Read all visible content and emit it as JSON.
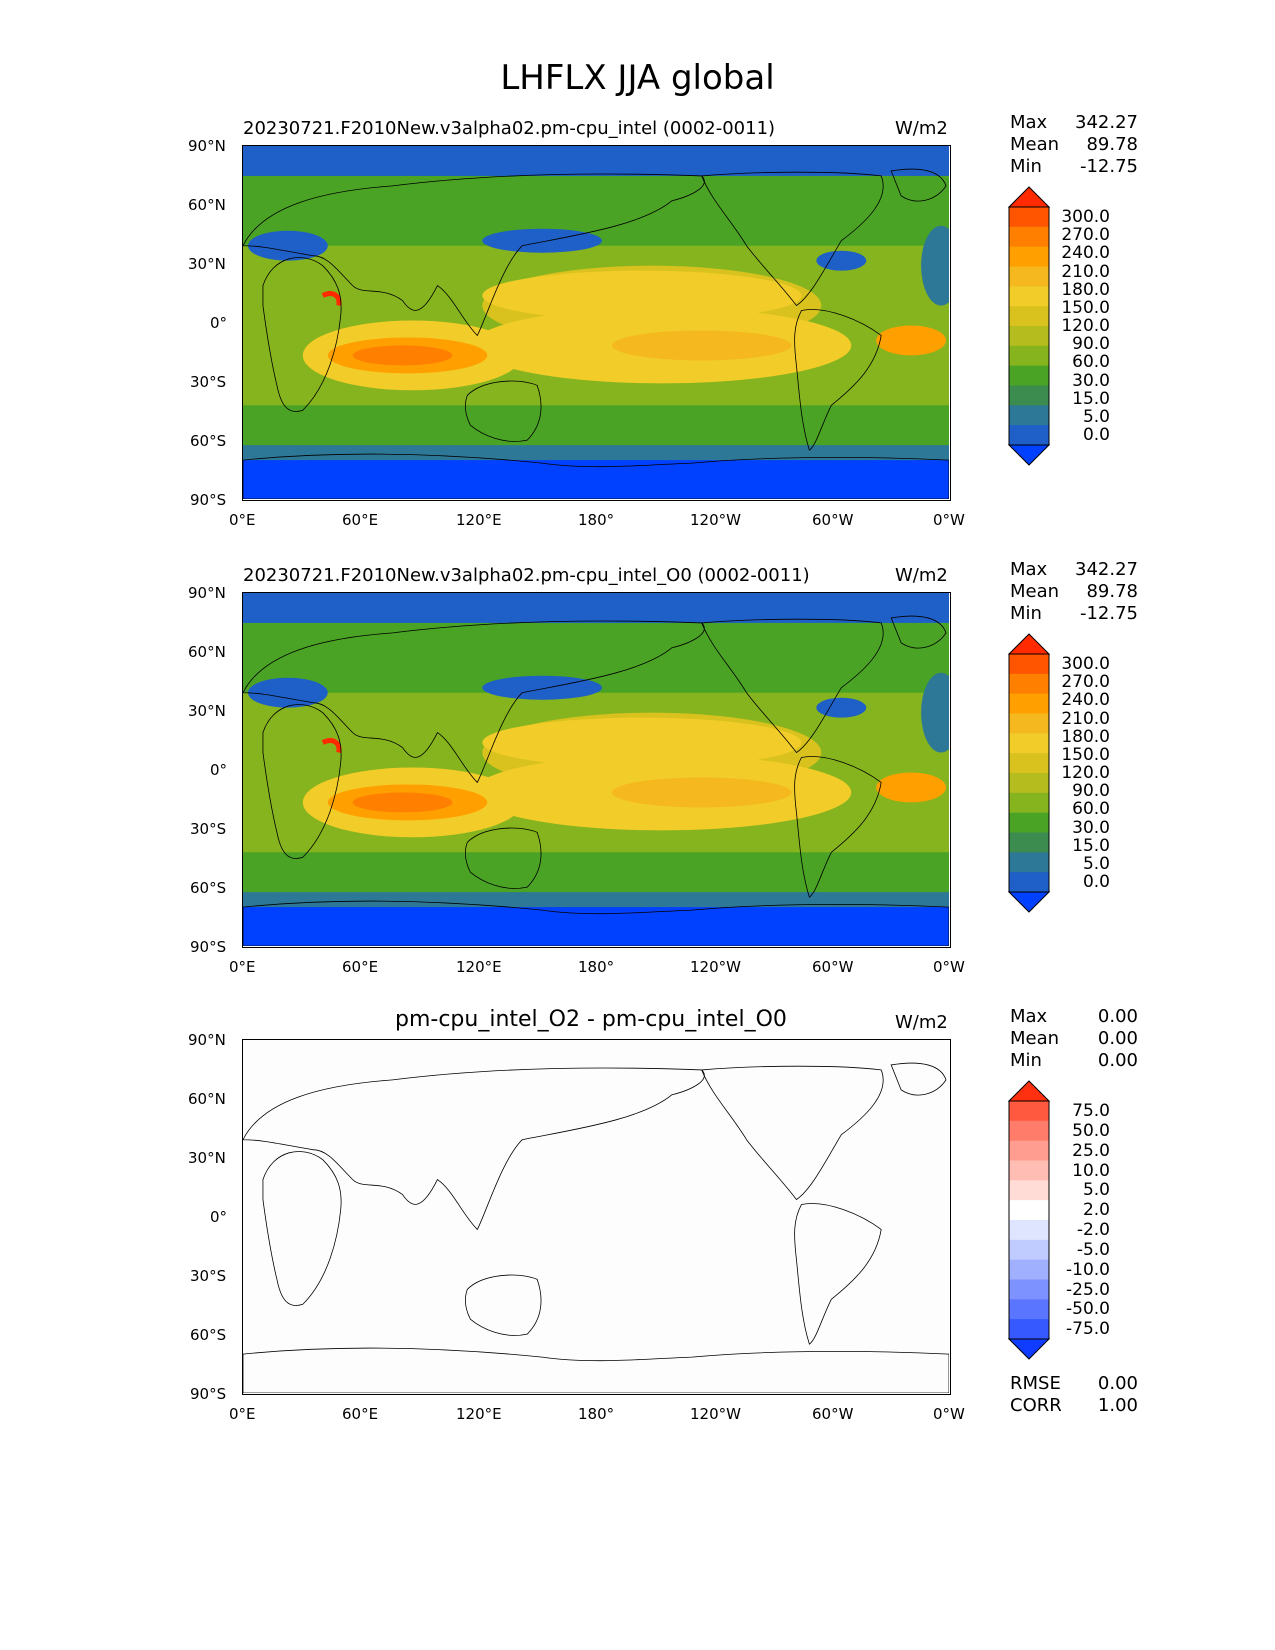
{
  "title": "LHFLX JJA global",
  "lat_ticks": [
    "90°N",
    "60°N",
    "30°N",
    "0°",
    "30°S",
    "60°S",
    "90°S"
  ],
  "lon_ticks": [
    "0°E",
    "60°E",
    "120°E",
    "180°",
    "120°W",
    "60°W",
    "0°W"
  ],
  "panels": [
    {
      "title": "20230721.F2010New.v3alpha02.pm-cpu_intel (0002-0011)",
      "units": "W/m2",
      "stats": {
        "max_label": "Max",
        "max": "342.27",
        "mean_label": "Mean",
        "mean": "89.78",
        "min_label": "Min",
        "min": "-12.75"
      },
      "colorbar": {
        "labels": [
          "300.0",
          "270.0",
          "240.0",
          "210.0",
          "180.0",
          "150.0",
          "120.0",
          "90.0",
          "60.0",
          "30.0",
          "15.0",
          "5.0",
          "0.0"
        ],
        "colors": [
          "#ff2a00",
          "#ff5500",
          "#ff7f00",
          "#ffa000",
          "#f5b81e",
          "#f2cc28",
          "#d9c21e",
          "#b5bc1e",
          "#86b41e",
          "#4aa324",
          "#3c8c50",
          "#2d7896",
          "#1e5fc8",
          "#0040ff"
        ]
      }
    },
    {
      "title": "20230721.F2010New.v3alpha02.pm-cpu_intel_O0 (0002-0011)",
      "units": "W/m2",
      "stats": {
        "max_label": "Max",
        "max": "342.27",
        "mean_label": "Mean",
        "mean": "89.78",
        "min_label": "Min",
        "min": "-12.75"
      },
      "colorbar": {
        "labels": [
          "300.0",
          "270.0",
          "240.0",
          "210.0",
          "180.0",
          "150.0",
          "120.0",
          "90.0",
          "60.0",
          "30.0",
          "15.0",
          "5.0",
          "0.0"
        ],
        "colors": [
          "#ff2a00",
          "#ff5500",
          "#ff7f00",
          "#ffa000",
          "#f5b81e",
          "#f2cc28",
          "#d9c21e",
          "#b5bc1e",
          "#86b41e",
          "#4aa324",
          "#3c8c50",
          "#2d7896",
          "#1e5fc8",
          "#0040ff"
        ]
      }
    },
    {
      "title": "pm-cpu_intel_O2 - pm-cpu_intel_O0",
      "units": "W/m2",
      "stats": {
        "max_label": "Max",
        "max": "0.00",
        "mean_label": "Mean",
        "mean": "0.00",
        "min_label": "Min",
        "min": "0.00"
      },
      "colorbar": {
        "labels": [
          "75.0",
          "50.0",
          "25.0",
          "10.0",
          "5.0",
          "2.0",
          "-2.0",
          "-5.0",
          "-10.0",
          "-25.0",
          "-50.0",
          "-75.0"
        ],
        "colors": [
          "#ff3010",
          "#ff5a40",
          "#ff7b6a",
          "#ff9e90",
          "#ffbdb3",
          "#ffdcd6",
          "#ffffff",
          "#dfe4ff",
          "#c0cbff",
          "#a0b0ff",
          "#7d92ff",
          "#5a75ff",
          "#3558ff",
          "#0f3cff"
        ]
      },
      "metrics": {
        "rmse_label": "RMSE",
        "rmse": "0.00",
        "corr_label": "CORR",
        "corr": "1.00"
      }
    }
  ],
  "colors": {
    "ocean_high_lat": "#0040ff",
    "ocean_mid": "#4aa324",
    "subtropics": "#f2cc28",
    "trade_wind_max": "#ff7f00",
    "diff_zero": "#ffffff"
  }
}
